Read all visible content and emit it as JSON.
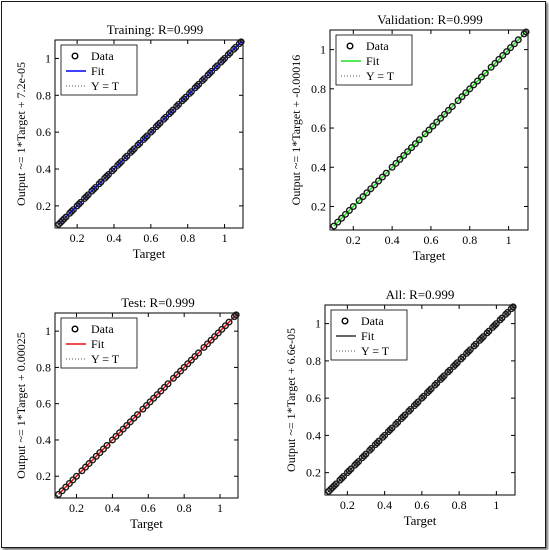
{
  "figure": {
    "background": "#ffffff",
    "axis_color": "#000000"
  },
  "chart_data": [
    {
      "type": "scatter",
      "title": "Training: R=0.999",
      "xlabel": "Target",
      "ylabel": "Output ~= 1*Target + 7.2e-05",
      "xlim": [
        0.08,
        1.1
      ],
      "ylim": [
        0.08,
        1.1
      ],
      "xticks": [
        "0.2",
        "0.4",
        "0.6",
        "0.8",
        "1"
      ],
      "yticks": [
        "0.2",
        "0.4",
        "0.6",
        "0.8",
        "1"
      ],
      "xtick_values": [
        0.2,
        0.4,
        0.6,
        0.8,
        1.0
      ],
      "ytick_values": [
        0.2,
        0.4,
        0.6,
        0.8,
        1.0
      ],
      "fit": {
        "slope": 1,
        "intercept": 7.2e-05,
        "color": "#0000ff"
      },
      "legend": {
        "position": "top-left",
        "entries": [
          "Data",
          "Fit",
          "Y = T"
        ]
      },
      "point_color": "#1a1a1a",
      "data_x": [
        0.1,
        0.11,
        0.12,
        0.13,
        0.14,
        0.16,
        0.17,
        0.18,
        0.2,
        0.21,
        0.22,
        0.24,
        0.25,
        0.26,
        0.28,
        0.29,
        0.3,
        0.32,
        0.33,
        0.35,
        0.36,
        0.37,
        0.39,
        0.4,
        0.42,
        0.43,
        0.44,
        0.46,
        0.47,
        0.49,
        0.5,
        0.51,
        0.53,
        0.54,
        0.56,
        0.57,
        0.58,
        0.6,
        0.61,
        0.63,
        0.64,
        0.65,
        0.67,
        0.68,
        0.7,
        0.71,
        0.72,
        0.74,
        0.75,
        0.77,
        0.78,
        0.79,
        0.81,
        0.82,
        0.84,
        0.85,
        0.86,
        0.88,
        0.89,
        0.91,
        0.92,
        0.93,
        0.95,
        0.96,
        0.98,
        0.99,
        1.0,
        1.02,
        1.03,
        1.05,
        1.06,
        1.08,
        1.09
      ],
      "data_y": [
        0.1,
        0.11,
        0.12,
        0.13,
        0.14,
        0.16,
        0.17,
        0.18,
        0.2,
        0.21,
        0.22,
        0.24,
        0.25,
        0.26,
        0.28,
        0.29,
        0.3,
        0.32,
        0.33,
        0.35,
        0.36,
        0.37,
        0.39,
        0.4,
        0.42,
        0.43,
        0.44,
        0.46,
        0.47,
        0.49,
        0.5,
        0.51,
        0.53,
        0.54,
        0.56,
        0.57,
        0.58,
        0.6,
        0.61,
        0.63,
        0.64,
        0.65,
        0.67,
        0.68,
        0.7,
        0.71,
        0.72,
        0.74,
        0.75,
        0.77,
        0.78,
        0.79,
        0.81,
        0.82,
        0.84,
        0.85,
        0.86,
        0.88,
        0.89,
        0.91,
        0.92,
        0.93,
        0.95,
        0.96,
        0.98,
        0.99,
        1.0,
        1.02,
        1.03,
        1.05,
        1.06,
        1.08,
        1.09
      ]
    },
    {
      "type": "scatter",
      "title": "Validation: R=0.999",
      "xlabel": "Target",
      "ylabel": "Output ~= 1*Target + -0.00016",
      "xlim": [
        0.08,
        1.1
      ],
      "ylim": [
        0.08,
        1.1
      ],
      "xticks": [
        "0.2",
        "0.4",
        "0.6",
        "0.8",
        "1"
      ],
      "yticks": [
        "0.2",
        "0.4",
        "0.6",
        "0.8",
        "1"
      ],
      "xtick_values": [
        0.2,
        0.4,
        0.6,
        0.8,
        1.0
      ],
      "ytick_values": [
        0.2,
        0.4,
        0.6,
        0.8,
        1.0
      ],
      "fit": {
        "slope": 1,
        "intercept": -0.00016,
        "color": "#22dd22"
      },
      "legend": {
        "position": "top-left",
        "entries": [
          "Data",
          "Fit",
          "Y = T"
        ]
      },
      "point_color": "#1a1a1a",
      "data_x": [
        0.1,
        0.12,
        0.14,
        0.16,
        0.18,
        0.2,
        0.23,
        0.25,
        0.27,
        0.29,
        0.31,
        0.33,
        0.35,
        0.37,
        0.4,
        0.42,
        0.44,
        0.46,
        0.48,
        0.5,
        0.52,
        0.54,
        0.57,
        0.59,
        0.61,
        0.63,
        0.65,
        0.67,
        0.69,
        0.71,
        0.74,
        0.76,
        0.78,
        0.8,
        0.82,
        0.84,
        0.86,
        0.88,
        0.91,
        0.93,
        0.95,
        0.97,
        0.99,
        1.01,
        1.03,
        1.05,
        1.08,
        1.09
      ],
      "data_y": [
        0.1,
        0.12,
        0.14,
        0.16,
        0.18,
        0.2,
        0.23,
        0.25,
        0.27,
        0.29,
        0.31,
        0.33,
        0.35,
        0.37,
        0.4,
        0.42,
        0.44,
        0.46,
        0.48,
        0.5,
        0.52,
        0.54,
        0.57,
        0.59,
        0.61,
        0.63,
        0.65,
        0.67,
        0.69,
        0.71,
        0.74,
        0.76,
        0.78,
        0.8,
        0.82,
        0.84,
        0.86,
        0.88,
        0.91,
        0.93,
        0.95,
        0.97,
        0.99,
        1.01,
        1.03,
        1.05,
        1.08,
        1.09
      ]
    },
    {
      "type": "scatter",
      "title": "Test: R=0.999",
      "xlabel": "Target",
      "ylabel": "Output ~= 1*Target + 0.00025",
      "xlim": [
        0.08,
        1.1
      ],
      "ylim": [
        0.08,
        1.1
      ],
      "xticks": [
        "0.2",
        "0.4",
        "0.6",
        "0.8",
        "1"
      ],
      "yticks": [
        "0.2",
        "0.4",
        "0.6",
        "0.8",
        "1"
      ],
      "xtick_values": [
        0.2,
        0.4,
        0.6,
        0.8,
        1.0
      ],
      "ytick_values": [
        0.2,
        0.4,
        0.6,
        0.8,
        1.0
      ],
      "fit": {
        "slope": 1,
        "intercept": 0.00025,
        "color": "#ee1111"
      },
      "legend": {
        "position": "top-left",
        "entries": [
          "Data",
          "Fit",
          "Y = T"
        ]
      },
      "point_color": "#1a1a1a",
      "data_x": [
        0.1,
        0.12,
        0.14,
        0.16,
        0.18,
        0.2,
        0.23,
        0.25,
        0.27,
        0.29,
        0.31,
        0.33,
        0.35,
        0.37,
        0.4,
        0.42,
        0.44,
        0.46,
        0.48,
        0.5,
        0.52,
        0.54,
        0.57,
        0.59,
        0.61,
        0.63,
        0.65,
        0.67,
        0.69,
        0.71,
        0.74,
        0.76,
        0.78,
        0.8,
        0.82,
        0.84,
        0.86,
        0.88,
        0.91,
        0.93,
        0.95,
        0.97,
        0.99,
        1.01,
        1.03,
        1.05,
        1.08,
        1.09
      ],
      "data_y": [
        0.1,
        0.12,
        0.14,
        0.16,
        0.18,
        0.2,
        0.23,
        0.25,
        0.27,
        0.29,
        0.31,
        0.33,
        0.35,
        0.37,
        0.4,
        0.42,
        0.44,
        0.46,
        0.48,
        0.5,
        0.52,
        0.54,
        0.57,
        0.59,
        0.61,
        0.63,
        0.65,
        0.67,
        0.69,
        0.71,
        0.74,
        0.76,
        0.78,
        0.8,
        0.82,
        0.84,
        0.86,
        0.88,
        0.91,
        0.93,
        0.95,
        0.97,
        0.99,
        1.01,
        1.03,
        1.05,
        1.08,
        1.09
      ]
    },
    {
      "type": "scatter",
      "title": "All: R=0.999",
      "xlabel": "Target",
      "ylabel": "Output ~= 1*Target + 6.6e-05",
      "xlim": [
        0.08,
        1.1
      ],
      "ylim": [
        0.08,
        1.1
      ],
      "xticks": [
        "0.2",
        "0.4",
        "0.6",
        "0.8",
        "1"
      ],
      "yticks": [
        "0.2",
        "0.4",
        "0.6",
        "0.8",
        "1"
      ],
      "xtick_values": [
        0.2,
        0.4,
        0.6,
        0.8,
        1.0
      ],
      "ytick_values": [
        0.2,
        0.4,
        0.6,
        0.8,
        1.0
      ],
      "fit": {
        "slope": 1,
        "intercept": 6.6e-05,
        "color": "#333333"
      },
      "legend": {
        "position": "top-left",
        "entries": [
          "Data",
          "Fit",
          "Y = T"
        ]
      },
      "point_color": "#1a1a1a",
      "data_x": [
        0.1,
        0.11,
        0.12,
        0.13,
        0.14,
        0.16,
        0.17,
        0.18,
        0.2,
        0.21,
        0.22,
        0.24,
        0.25,
        0.26,
        0.28,
        0.29,
        0.3,
        0.32,
        0.33,
        0.35,
        0.36,
        0.37,
        0.39,
        0.4,
        0.42,
        0.43,
        0.44,
        0.46,
        0.47,
        0.49,
        0.5,
        0.51,
        0.53,
        0.54,
        0.56,
        0.57,
        0.58,
        0.6,
        0.61,
        0.63,
        0.64,
        0.65,
        0.67,
        0.68,
        0.7,
        0.71,
        0.72,
        0.74,
        0.75,
        0.77,
        0.78,
        0.79,
        0.81,
        0.82,
        0.84,
        0.85,
        0.86,
        0.88,
        0.89,
        0.91,
        0.92,
        0.93,
        0.95,
        0.96,
        0.98,
        0.99,
        1.0,
        1.02,
        1.03,
        1.05,
        1.06,
        1.08,
        1.09
      ],
      "data_y": [
        0.1,
        0.11,
        0.12,
        0.13,
        0.14,
        0.16,
        0.17,
        0.18,
        0.2,
        0.21,
        0.22,
        0.24,
        0.25,
        0.26,
        0.28,
        0.29,
        0.3,
        0.32,
        0.33,
        0.35,
        0.36,
        0.37,
        0.39,
        0.4,
        0.42,
        0.43,
        0.44,
        0.46,
        0.47,
        0.49,
        0.5,
        0.51,
        0.53,
        0.54,
        0.56,
        0.57,
        0.58,
        0.6,
        0.61,
        0.63,
        0.64,
        0.65,
        0.67,
        0.68,
        0.7,
        0.71,
        0.72,
        0.74,
        0.75,
        0.77,
        0.78,
        0.79,
        0.81,
        0.82,
        0.84,
        0.85,
        0.86,
        0.88,
        0.89,
        0.91,
        0.92,
        0.93,
        0.95,
        0.96,
        0.98,
        0.99,
        1.0,
        1.02,
        1.03,
        1.05,
        1.06,
        1.08,
        1.09
      ]
    }
  ]
}
